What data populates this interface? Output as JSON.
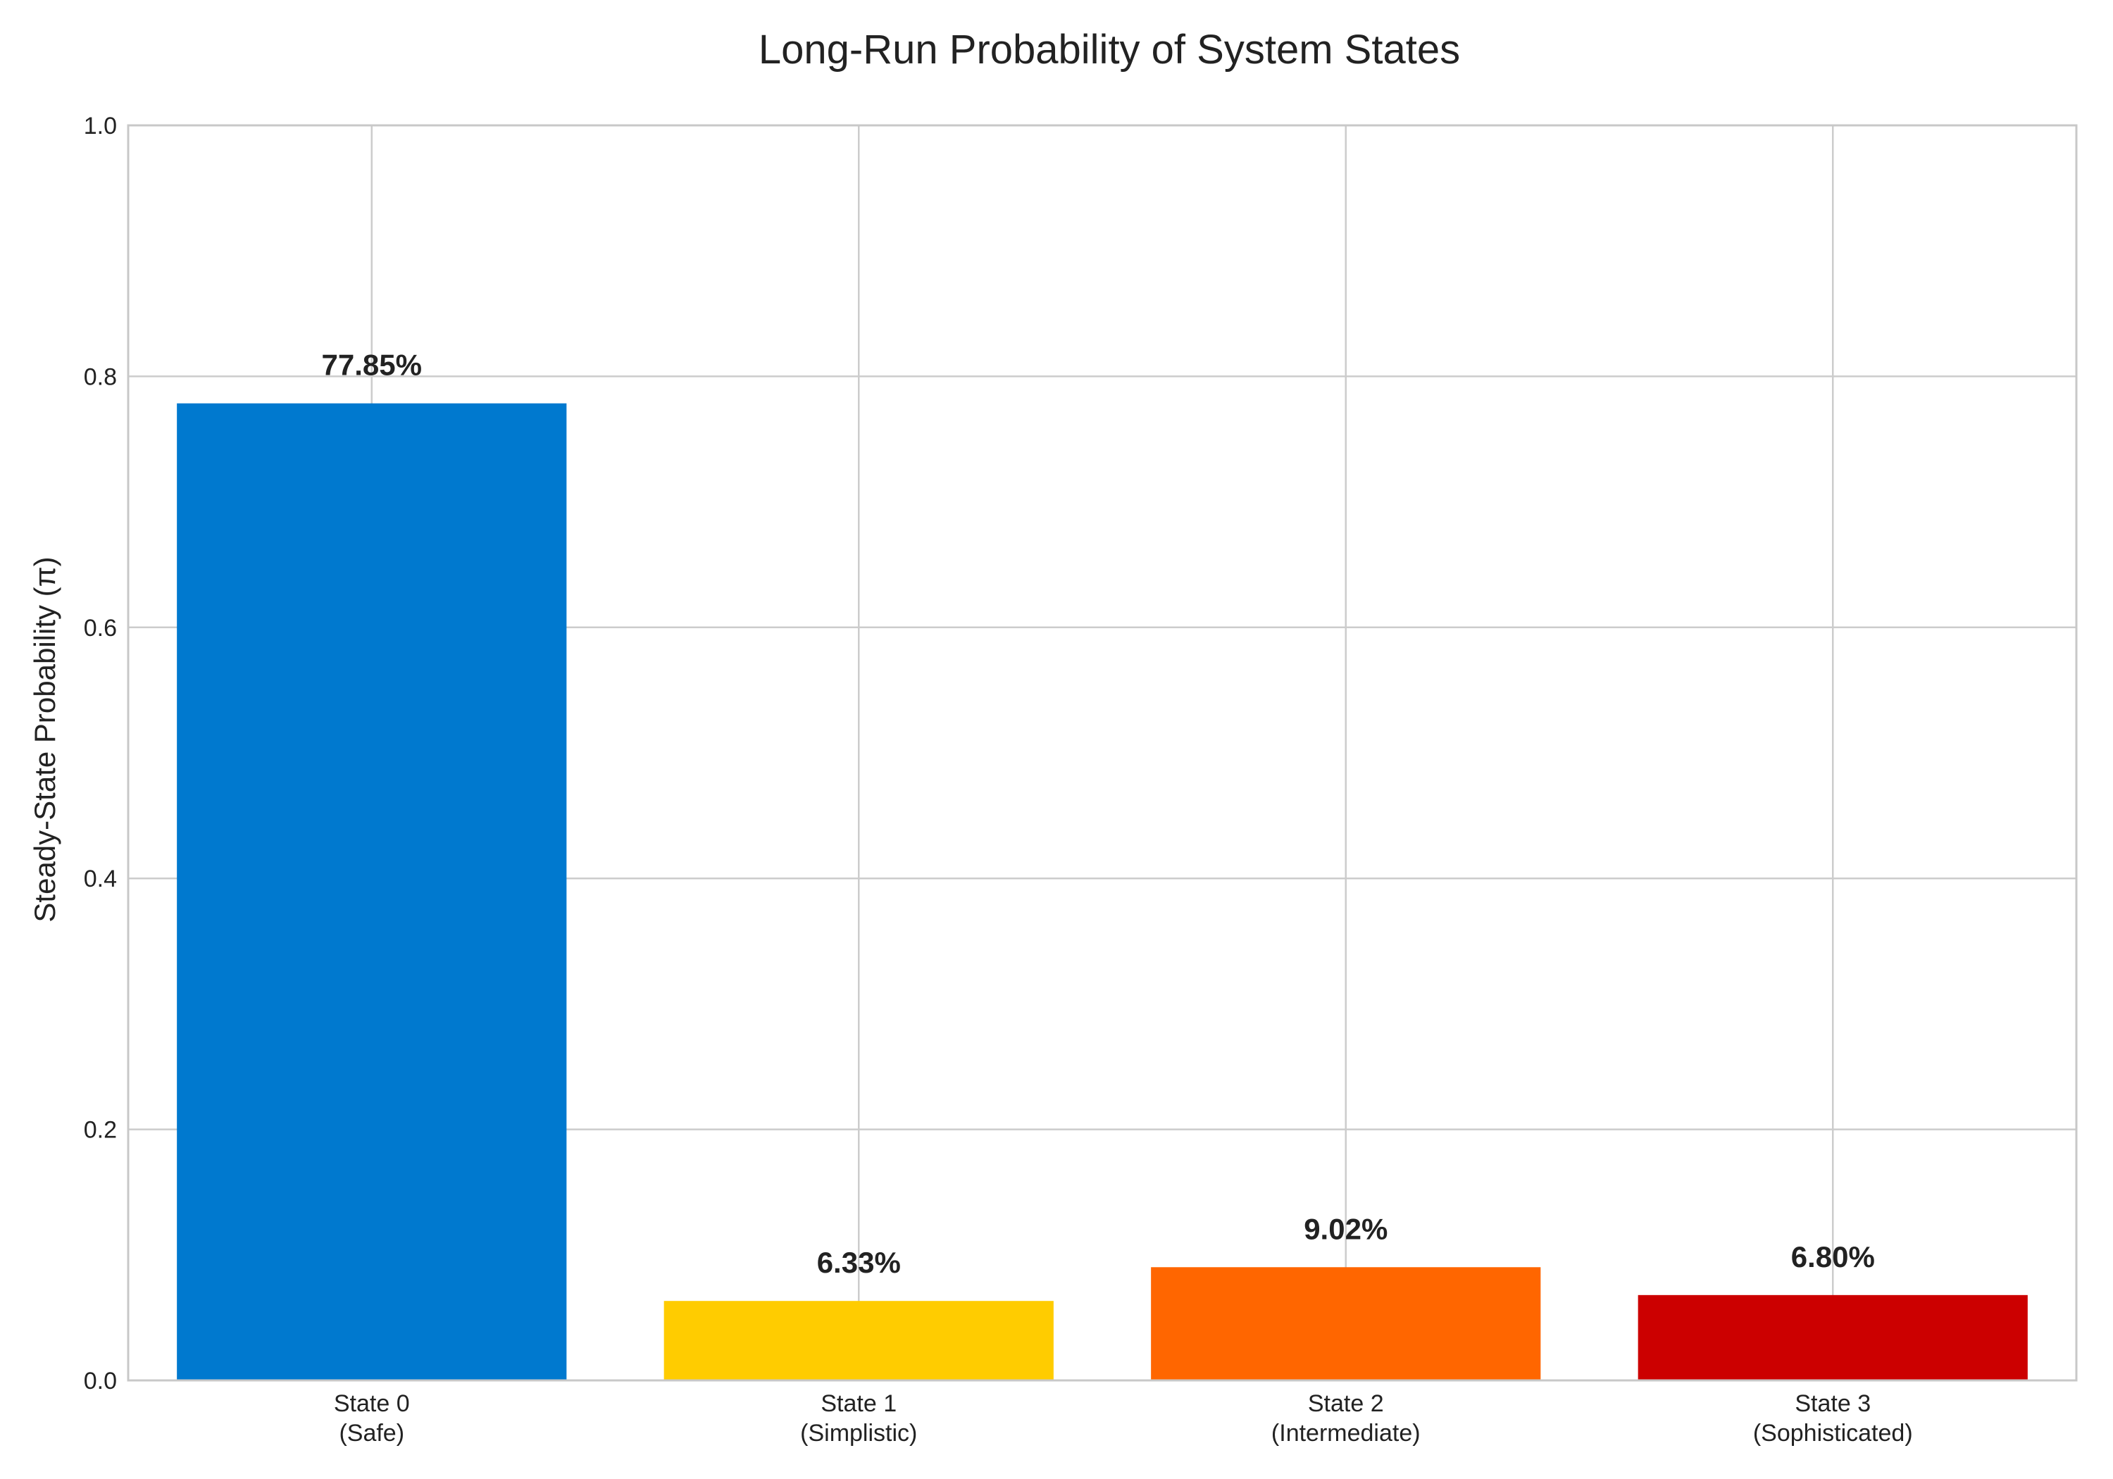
{
  "chart_data": {
    "type": "bar",
    "title": "Long-Run Probability of System States",
    "xlabel": "",
    "ylabel": "Steady-State Probability (π)",
    "ylim": [
      0,
      1.0
    ],
    "yticks": [
      "0.0",
      "0.2",
      "0.4",
      "0.6",
      "0.8",
      "1.0"
    ],
    "grid": true,
    "categories": [
      [
        "State 0",
        "(Safe)"
      ],
      [
        "State 1",
        "(Simplistic)"
      ],
      [
        "State 2",
        "(Intermediate)"
      ],
      [
        "State 3",
        "(Sophisticated)"
      ]
    ],
    "values": [
      0.7785,
      0.0633,
      0.0902,
      0.068
    ],
    "data_labels": [
      "77.85%",
      "6.33%",
      "9.02%",
      "6.80%"
    ],
    "colors": [
      "#0079cf",
      "#ffcc00",
      "#ff6600",
      "#cc0000"
    ]
  }
}
